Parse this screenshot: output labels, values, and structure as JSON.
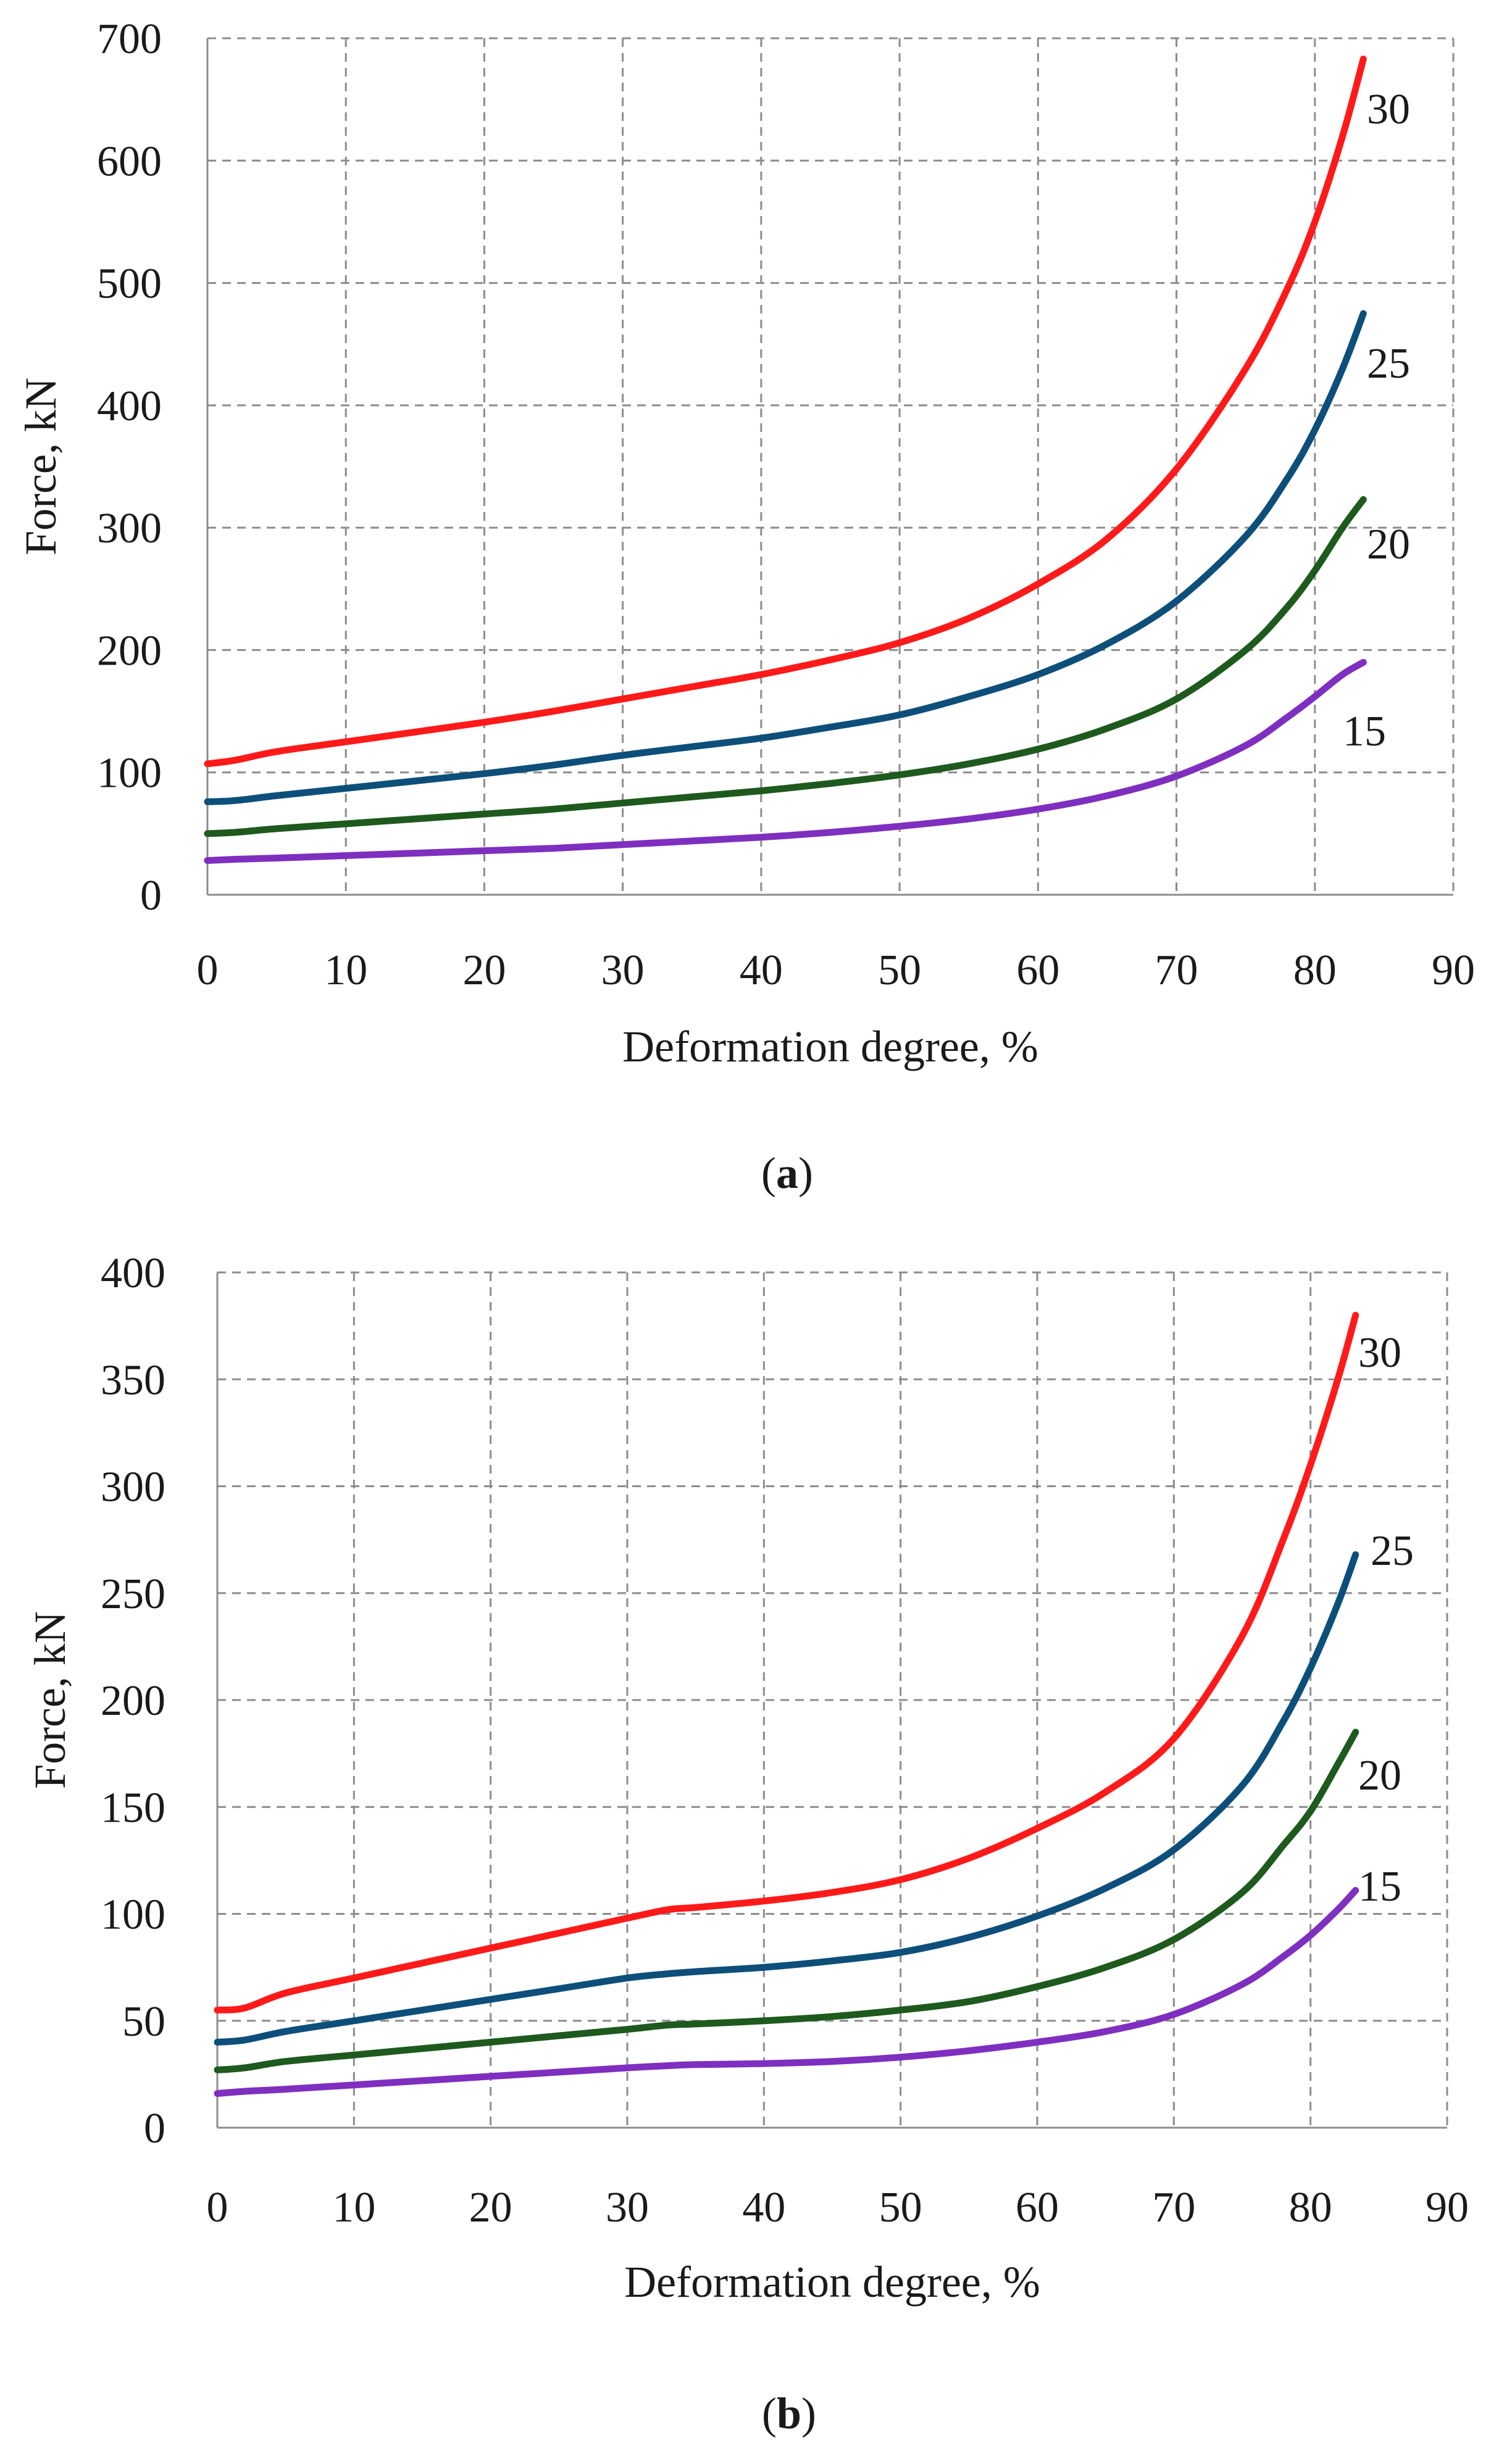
{
  "chart_data": [
    {
      "type": "line",
      "panel": "a",
      "caption_text": "a",
      "xlabel": "Deformation degree, %",
      "ylabel": "Force, kN",
      "xlim": [
        0,
        90
      ],
      "ylim": [
        0,
        700
      ],
      "xticks": [
        0,
        10,
        20,
        30,
        40,
        50,
        60,
        70,
        80,
        90
      ],
      "yticks": [
        0,
        100,
        200,
        300,
        400,
        500,
        600,
        700
      ],
      "grid": true,
      "series": [
        {
          "name": "30",
          "color": "#ff1a1a",
          "x": [
            0,
            2,
            5,
            10,
            15,
            20,
            25,
            30,
            35,
            40,
            45,
            50,
            55,
            60,
            65,
            70,
            75,
            78,
            80,
            82,
            83.5
          ],
          "y": [
            107,
            110,
            117,
            125,
            133,
            141,
            150,
            160,
            170,
            180,
            192,
            206,
            226,
            254,
            291,
            348,
            430,
            495,
            550,
            620,
            683
          ]
        },
        {
          "name": "25",
          "color": "#0d4f7a",
          "x": [
            0,
            2,
            5,
            10,
            15,
            20,
            25,
            30,
            35,
            40,
            45,
            50,
            55,
            60,
            65,
            70,
            75,
            78,
            80,
            82,
            83.5
          ],
          "y": [
            76,
            77,
            81,
            87,
            93,
            99,
            106,
            114,
            121,
            128,
            137,
            147,
            162,
            180,
            205,
            240,
            293,
            340,
            380,
            430,
            475
          ]
        },
        {
          "name": "20",
          "color": "#1e5a1e",
          "x": [
            0,
            2,
            5,
            10,
            15,
            20,
            25,
            30,
            35,
            40,
            45,
            50,
            55,
            60,
            65,
            70,
            75,
            78,
            80,
            82,
            83.5
          ],
          "y": [
            50,
            51,
            54,
            58,
            62,
            66,
            70,
            75,
            80,
            85,
            91,
            98,
            107,
            119,
            136,
            160,
            200,
            235,
            265,
            300,
            323
          ]
        },
        {
          "name": "15",
          "color": "#7f2fbf",
          "x": [
            0,
            2,
            5,
            10,
            15,
            20,
            25,
            30,
            35,
            40,
            45,
            50,
            55,
            60,
            65,
            70,
            75,
            78,
            80,
            82,
            83.5
          ],
          "y": [
            28,
            29,
            30,
            32,
            34,
            36,
            38,
            41,
            44,
            47,
            51,
            56,
            62,
            70,
            81,
            97,
            122,
            145,
            162,
            180,
            190
          ]
        }
      ]
    },
    {
      "type": "line",
      "panel": "b",
      "caption_text": "b",
      "xlabel": "Deformation degree, %",
      "ylabel": "Force, kN",
      "xlim": [
        0,
        90
      ],
      "ylim": [
        0,
        400
      ],
      "xticks": [
        0,
        10,
        20,
        30,
        40,
        50,
        60,
        70,
        80,
        90
      ],
      "yticks": [
        0,
        50,
        100,
        150,
        200,
        250,
        300,
        350,
        400
      ],
      "grid": true,
      "series": [
        {
          "name": "30",
          "color": "#ff1a1a",
          "x": [
            0,
            2,
            5,
            10,
            15,
            20,
            25,
            30,
            33,
            35,
            40,
            45,
            50,
            55,
            60,
            65,
            70,
            75,
            78,
            80,
            82,
            83.3
          ],
          "y": [
            55,
            56,
            63,
            70,
            77,
            84,
            91,
            98,
            102,
            103,
            106,
            110,
            116,
            126,
            140,
            157,
            182,
            230,
            275,
            310,
            350,
            380
          ]
        },
        {
          "name": "25",
          "color": "#0d4f7a",
          "x": [
            0,
            2,
            5,
            10,
            15,
            20,
            25,
            30,
            33,
            35,
            40,
            45,
            50,
            55,
            60,
            65,
            70,
            75,
            78,
            80,
            82,
            83.3
          ],
          "y": [
            40,
            41,
            45,
            50,
            55,
            60,
            65,
            70,
            72,
            73,
            75,
            78,
            82,
            89,
            99,
            112,
            130,
            160,
            190,
            215,
            245,
            268
          ]
        },
        {
          "name": "20",
          "color": "#1e5a1e",
          "x": [
            0,
            2,
            5,
            10,
            15,
            20,
            25,
            30,
            33,
            35,
            40,
            45,
            50,
            55,
            60,
            65,
            70,
            75,
            78,
            80,
            82,
            83.3
          ],
          "y": [
            27,
            28,
            31,
            34,
            37,
            40,
            43,
            46,
            48,
            48.5,
            50,
            52,
            55,
            59,
            66,
            75,
            88,
            110,
            132,
            148,
            170,
            185
          ]
        },
        {
          "name": "15",
          "color": "#7f2fbf",
          "x": [
            0,
            2,
            5,
            10,
            15,
            20,
            25,
            30,
            33,
            35,
            40,
            45,
            50,
            55,
            60,
            65,
            70,
            75,
            78,
            80,
            82,
            83.3
          ],
          "y": [
            16,
            17,
            18,
            20,
            22,
            24,
            26,
            28,
            29,
            29.5,
            30,
            31,
            33,
            36,
            40,
            45,
            53,
            67,
            80,
            90,
            102,
            111
          ]
        }
      ]
    }
  ]
}
